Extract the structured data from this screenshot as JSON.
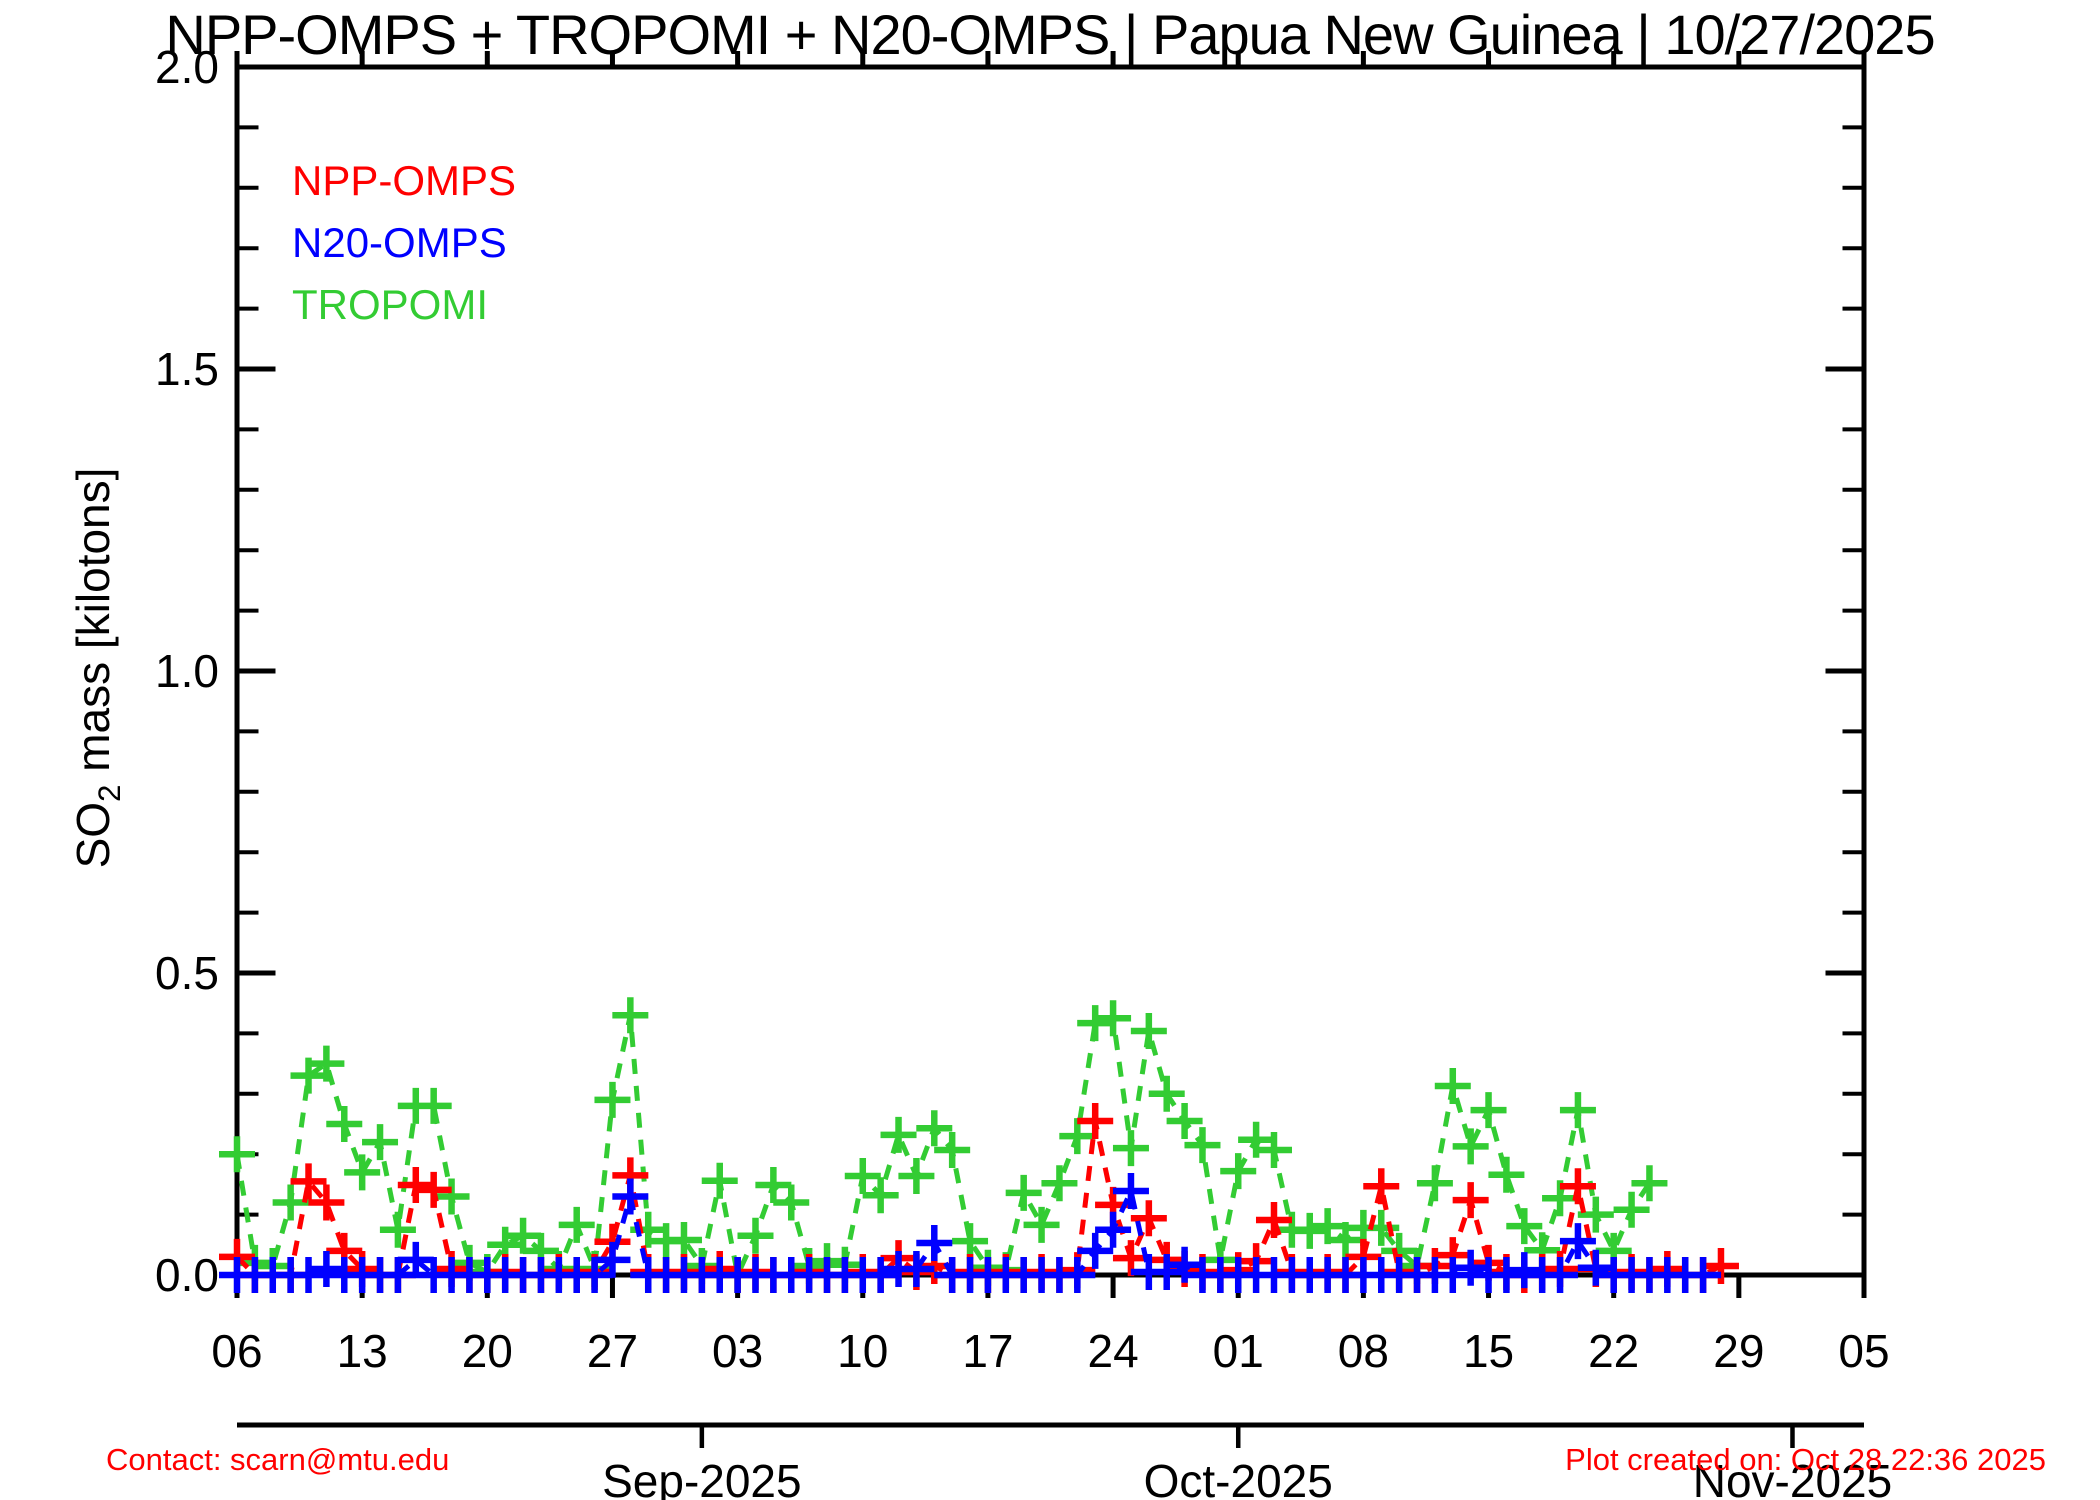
{
  "title": "NPP-OMPS + TROPOMI + N20-OMPS | Papua New Guinea | 10/27/2025",
  "legend": {
    "items": [
      {
        "label": "NPP-OMPS",
        "color": "#ff0000"
      },
      {
        "label": "N20-OMPS",
        "color": "#0000ff"
      },
      {
        "label": "TROPOMI",
        "color": "#33cc33"
      }
    ]
  },
  "footer": {
    "contact": "Contact: scarn@mtu.edu",
    "created": "Plot created on: Oct 28 22:36 2025",
    "color": "#ff0000"
  },
  "chart_data": {
    "type": "line",
    "title": "NPP-OMPS + TROPOMI + N20-OMPS | Papua New Guinea | 10/27/2025",
    "ylabel": "SO2 mass [kilotons]",
    "ylabel_parts": {
      "prefix": "SO",
      "sub": "2",
      "suffix": " mass [kilotons]"
    },
    "xlabel": "",
    "ylim": [
      0.0,
      2.0
    ],
    "ytick_labels": [
      "0.0",
      "0.5",
      "1.0",
      "1.5",
      "2.0"
    ],
    "ytick_values": [
      0.0,
      0.5,
      1.0,
      1.5,
      2.0
    ],
    "y_minor_step": 0.1,
    "grid": false,
    "legend_position": "top-left-inside",
    "x_axis": {
      "start_date": "2025-08-06",
      "end_date": "2025-11-05",
      "span_days": 91,
      "week_ticks": [
        {
          "day": 0,
          "label": "06"
        },
        {
          "day": 7,
          "label": "13"
        },
        {
          "day": 14,
          "label": "20"
        },
        {
          "day": 21,
          "label": "27"
        },
        {
          "day": 28,
          "label": "03"
        },
        {
          "day": 35,
          "label": "10"
        },
        {
          "day": 42,
          "label": "17"
        },
        {
          "day": 49,
          "label": "24"
        },
        {
          "day": 56,
          "label": "01"
        },
        {
          "day": 63,
          "label": "08"
        },
        {
          "day": 70,
          "label": "15"
        },
        {
          "day": 77,
          "label": "22"
        },
        {
          "day": 84,
          "label": "29"
        },
        {
          "day": 91,
          "label": "05"
        }
      ],
      "months": [
        {
          "day": 26,
          "label": "Sep-2025"
        },
        {
          "day": 56,
          "label": "Oct-2025"
        },
        {
          "day": 87,
          "label": "Nov-2025"
        }
      ]
    },
    "dates": [
      "08-06",
      "08-07",
      "08-08",
      "08-09",
      "08-10",
      "08-11",
      "08-12",
      "08-13",
      "08-14",
      "08-15",
      "08-16",
      "08-17",
      "08-18",
      "08-19",
      "08-20",
      "08-21",
      "08-22",
      "08-23",
      "08-24",
      "08-25",
      "08-26",
      "08-27",
      "08-28",
      "08-29",
      "08-30",
      "08-31",
      "09-01",
      "09-02",
      "09-03",
      "09-04",
      "09-05",
      "09-06",
      "09-07",
      "09-08",
      "09-09",
      "09-10",
      "09-11",
      "09-12",
      "09-13",
      "09-14",
      "09-15",
      "09-16",
      "09-17",
      "09-18",
      "09-19",
      "09-20",
      "09-21",
      "09-22",
      "09-23",
      "09-24",
      "09-25",
      "09-26",
      "09-27",
      "09-28",
      "09-29",
      "09-30",
      "10-01",
      "10-02",
      "10-03",
      "10-04",
      "10-05",
      "10-06",
      "10-07",
      "10-08",
      "10-09",
      "10-10",
      "10-11",
      "10-12",
      "10-13",
      "10-14",
      "10-15",
      "10-16",
      "10-17",
      "10-18",
      "10-19",
      "10-20",
      "10-21",
      "10-22",
      "10-23",
      "10-24",
      "10-25",
      "10-26",
      "10-27",
      "10-28"
    ],
    "series": [
      {
        "name": "TROPOMI",
        "color": "#33cc33",
        "marker": "plus",
        "linestyle": "dashed",
        "values": [
          0.2,
          0.02,
          0.015,
          0.12,
          0.33,
          0.35,
          0.25,
          0.17,
          0.22,
          0.075,
          0.28,
          0.28,
          0.13,
          0.02,
          0.005,
          0.05,
          0.065,
          0.04,
          0.01,
          0.083,
          0.01,
          0.29,
          0.43,
          0.075,
          0.056,
          0.058,
          0.015,
          0.156,
          0.0,
          0.065,
          0.149,
          0.12,
          0.015,
          0.023,
          0.017,
          0.164,
          0.132,
          0.232,
          0.164,
          0.243,
          0.207,
          0.056,
          0.012,
          0.008,
          0.136,
          0.083,
          0.152,
          0.23,
          0.417,
          0.425,
          0.21,
          0.404,
          0.3,
          0.255,
          0.215,
          0.025,
          0.172,
          0.224,
          0.207,
          0.075,
          0.073,
          0.081,
          0.058,
          0.078,
          0.078,
          0.04,
          0.015,
          0.152,
          0.313,
          0.213,
          0.273,
          0.166,
          0.081,
          0.041,
          0.127,
          0.273,
          0.1,
          0.04,
          0.108,
          0.152,
          null,
          null,
          null,
          null
        ]
      },
      {
        "name": "NPP-OMPS",
        "color": "#ff0000",
        "marker": "plus",
        "linestyle": "dashed",
        "values": [
          0.03,
          0.0,
          0.0,
          0.0,
          0.155,
          0.12,
          0.04,
          0.01,
          0.0,
          0.0,
          0.149,
          0.141,
          0.01,
          0.0,
          0.0,
          0.005,
          0.0,
          0.0,
          0.005,
          0.0,
          0.005,
          0.055,
          0.165,
          0.005,
          0.0,
          0.005,
          0.0,
          0.01,
          0.0,
          0.005,
          0.0,
          0.0,
          0.005,
          0.0,
          0.0,
          0.005,
          0.0,
          0.028,
          0.005,
          0.015,
          0.0,
          0.005,
          0.0,
          0.005,
          0.0,
          0.005,
          0.0,
          0.008,
          0.255,
          0.116,
          0.028,
          0.094,
          0.025,
          0.01,
          0.005,
          0.0,
          0.008,
          0.023,
          0.091,
          0.005,
          0.0,
          0.005,
          0.0,
          0.03,
          0.147,
          0.005,
          0.0,
          0.015,
          0.033,
          0.124,
          0.02,
          0.005,
          0.0,
          0.005,
          0.01,
          0.147,
          0.01,
          0.0,
          0.005,
          0.0,
          0.01,
          0.0,
          0.0,
          0.015
        ]
      },
      {
        "name": "N20-OMPS",
        "color": "#0000ff",
        "marker": "plus",
        "linestyle": "dashed",
        "values": [
          0.0,
          0.0,
          0.0,
          0.0,
          0.0,
          0.01,
          0.0,
          0.0,
          0.0,
          0.0,
          0.025,
          0.0,
          0.0,
          0.0,
          0.0,
          0.0,
          0.0,
          0.0,
          0.0,
          0.0,
          0.0,
          0.025,
          0.13,
          0.0,
          0.0,
          0.0,
          0.0,
          0.0,
          0.0,
          0.0,
          0.0,
          0.0,
          0.0,
          0.0,
          0.0,
          0.0,
          0.0,
          0.01,
          0.01,
          0.053,
          0.0,
          0.0,
          0.0,
          0.0,
          0.0,
          0.0,
          0.0,
          0.0,
          0.04,
          0.075,
          0.139,
          0.005,
          0.005,
          0.017,
          0.0,
          0.0,
          0.0,
          0.0,
          0.0,
          0.0,
          0.0,
          0.0,
          0.0,
          0.0,
          0.0,
          0.0,
          0.0,
          0.0,
          0.0,
          0.012,
          0.0,
          0.0,
          0.008,
          0.0,
          0.0,
          0.056,
          0.012,
          0.0,
          0.0,
          0.0,
          0.0,
          0.0,
          0.0,
          null
        ]
      }
    ]
  }
}
